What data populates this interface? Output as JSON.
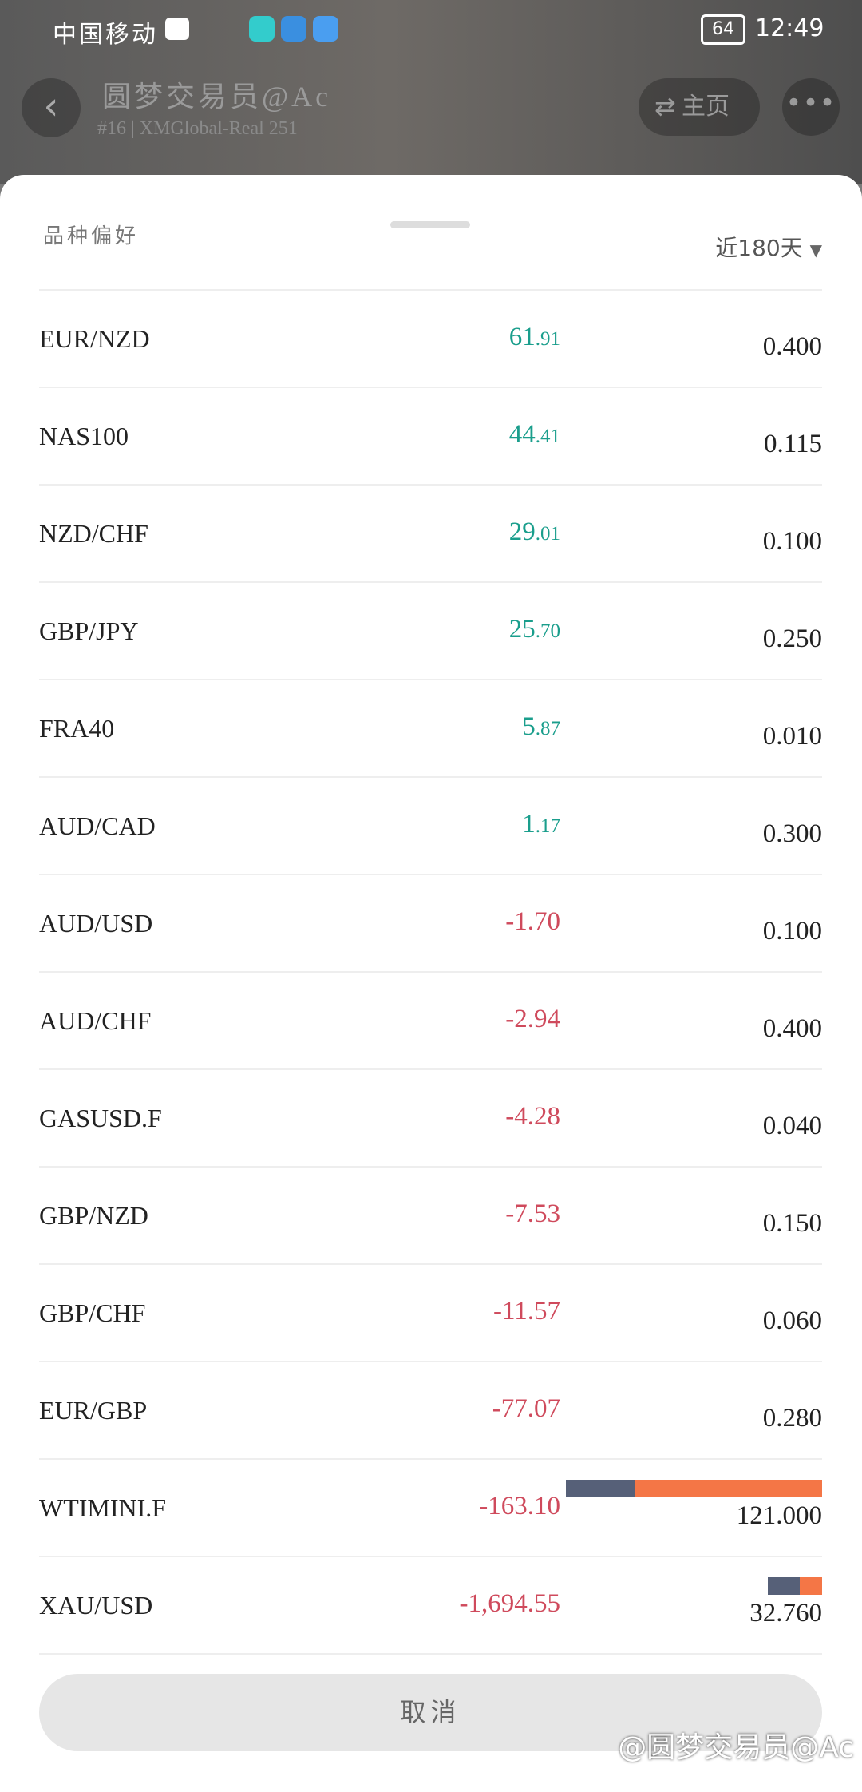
{
  "status_bar": {
    "carrier": "中国移动",
    "battery": "64",
    "time": "12:49"
  },
  "header": {
    "title": "圆梦交易员@Ac",
    "subtitle": "#16 | XMGlobal-Real 251",
    "home_button": "主页"
  },
  "sheet": {
    "title": "品种偏好",
    "period": "近180天",
    "rows": [
      {
        "symbol": "EUR/NZD",
        "profit": "61.91",
        "volume": "0.400"
      },
      {
        "symbol": "NAS100",
        "profit": "44.41",
        "volume": "0.115"
      },
      {
        "symbol": "NZD/CHF",
        "profit": "29.01",
        "volume": "0.100"
      },
      {
        "symbol": "GBP/JPY",
        "profit": "25.70",
        "volume": "0.250"
      },
      {
        "symbol": "FRA40",
        "profit": "5.87",
        "volume": "0.010"
      },
      {
        "symbol": "AUD/CAD",
        "profit": "1.17",
        "volume": "0.300"
      },
      {
        "symbol": "AUD/USD",
        "profit": "-1.70",
        "volume": "0.100"
      },
      {
        "symbol": "AUD/CHF",
        "profit": "-2.94",
        "volume": "0.400"
      },
      {
        "symbol": "GASUSD.F",
        "profit": "-4.28",
        "volume": "0.040"
      },
      {
        "symbol": "GBP/NZD",
        "profit": "-7.53",
        "volume": "0.150"
      },
      {
        "symbol": "GBP/CHF",
        "profit": "-11.57",
        "volume": "0.060"
      },
      {
        "symbol": "EUR/GBP",
        "profit": "-77.07",
        "volume": "0.280"
      },
      {
        "symbol": "WTIMINI.F",
        "profit": "-163.10",
        "volume": "121.000"
      },
      {
        "symbol": "XAU/USD",
        "profit": "-1,694.55",
        "volume": "32.760"
      }
    ],
    "cancel": "取消"
  },
  "watermark": "@圆梦交易员@Ac"
}
